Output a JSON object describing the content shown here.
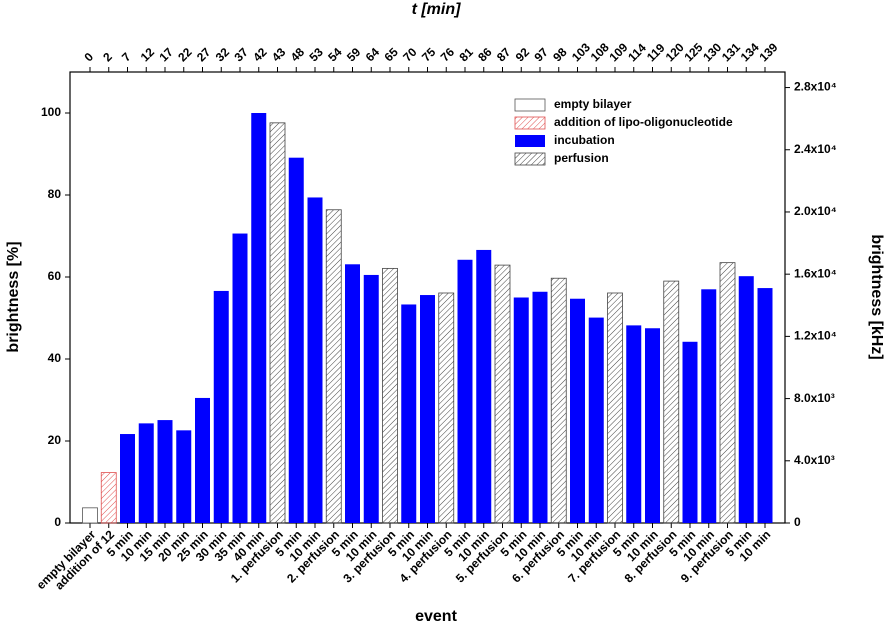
{
  "chart_data": {
    "type": "bar",
    "x_label": "event",
    "y_label": "brightness [%]",
    "y2_label": "brightness [kHz]",
    "x2_label": "t [min]",
    "categories": [
      "empty bilayer",
      "addition of 12",
      "5 min",
      "10 min",
      "15 min",
      "20 min",
      "25 min",
      "30 min",
      "35 min",
      "40 min",
      "1. perfusion",
      "5 min",
      "10 min",
      "2. perfusion",
      "5 min",
      "10 min",
      "3. perfusion",
      "5 min",
      "10 min",
      "4. perfusion",
      "5 min",
      "10 min",
      "5. perfusion",
      "5 min",
      "10 min",
      "6. perfusion",
      "5 min",
      "10 min",
      "7. perfusion",
      "5 min",
      "10 min",
      "8. perfusion",
      "5 min",
      "10 min",
      "9. perfusion",
      "5 min",
      "10 min"
    ],
    "x2_categories": [
      0,
      2,
      7,
      12,
      17,
      22,
      27,
      32,
      37,
      42,
      43,
      48,
      53,
      54,
      59,
      64,
      65,
      70,
      75,
      76,
      81,
      86,
      87,
      92,
      97,
      98,
      103,
      108,
      109,
      114,
      119,
      120,
      125,
      130,
      131,
      134,
      139
    ],
    "series": [
      {
        "name": "empty bilayer",
        "color": "#555555",
        "fill": "none",
        "values": [
          3.7,
          null,
          null,
          null,
          null,
          null,
          null,
          null,
          null,
          null,
          null,
          null,
          null,
          null,
          null,
          null,
          null,
          null,
          null,
          null,
          null,
          null,
          null,
          null,
          null,
          null,
          null,
          null,
          null,
          null,
          null,
          null,
          null,
          null,
          null,
          null,
          null
        ]
      },
      {
        "name": "addition of lipo-oligonucleotide",
        "color": "#e05050",
        "fill": "hatch",
        "values": [
          null,
          12.3,
          null,
          null,
          null,
          null,
          null,
          null,
          null,
          null,
          null,
          null,
          null,
          null,
          null,
          null,
          null,
          null,
          null,
          null,
          null,
          null,
          null,
          null,
          null,
          null,
          null,
          null,
          null,
          null,
          null,
          null,
          null,
          null,
          null,
          null,
          null
        ]
      },
      {
        "name": "incubation",
        "color": "#0000ff",
        "fill": "solid",
        "values": [
          null,
          null,
          21.7,
          24.3,
          25.1,
          22.6,
          30.5,
          56.6,
          70.6,
          100,
          null,
          89.1,
          79.4,
          null,
          63.1,
          60.5,
          null,
          53.3,
          55.6,
          null,
          64.2,
          66.6,
          null,
          55.0,
          56.4,
          null,
          54.7,
          50.1,
          null,
          48.2,
          47.5,
          null,
          44.2,
          57.0,
          null,
          60.2,
          57.3
        ]
      },
      {
        "name": "perfusion",
        "color": "#444444",
        "fill": "hatch",
        "values": [
          null,
          null,
          null,
          null,
          null,
          null,
          null,
          null,
          null,
          null,
          97.6,
          null,
          null,
          76.4,
          null,
          null,
          62.1,
          null,
          null,
          56.1,
          null,
          null,
          62.9,
          null,
          null,
          59.7,
          null,
          null,
          56.1,
          null,
          null,
          59.0,
          null,
          null,
          63.5,
          null,
          null
        ]
      }
    ],
    "ylim": [
      0,
      110
    ],
    "yticks": [
      0,
      20,
      40,
      60,
      80,
      100
    ],
    "y2lim": [
      0,
      29000
    ],
    "y2ticks": [
      {
        "value": 0,
        "label": "0"
      },
      {
        "value": 4000,
        "label": "4.0x10³"
      },
      {
        "value": 8000,
        "label": "8.0x10³"
      },
      {
        "value": 12000,
        "label": "1.2x10⁴"
      },
      {
        "value": 16000,
        "label": "1.6x10⁴"
      },
      {
        "value": 20000,
        "label": "2.0x10⁴"
      },
      {
        "value": 24000,
        "label": "2.4x10⁴"
      },
      {
        "value": 28000,
        "label": "2.8x10⁴"
      }
    ],
    "legend": "top-right"
  }
}
